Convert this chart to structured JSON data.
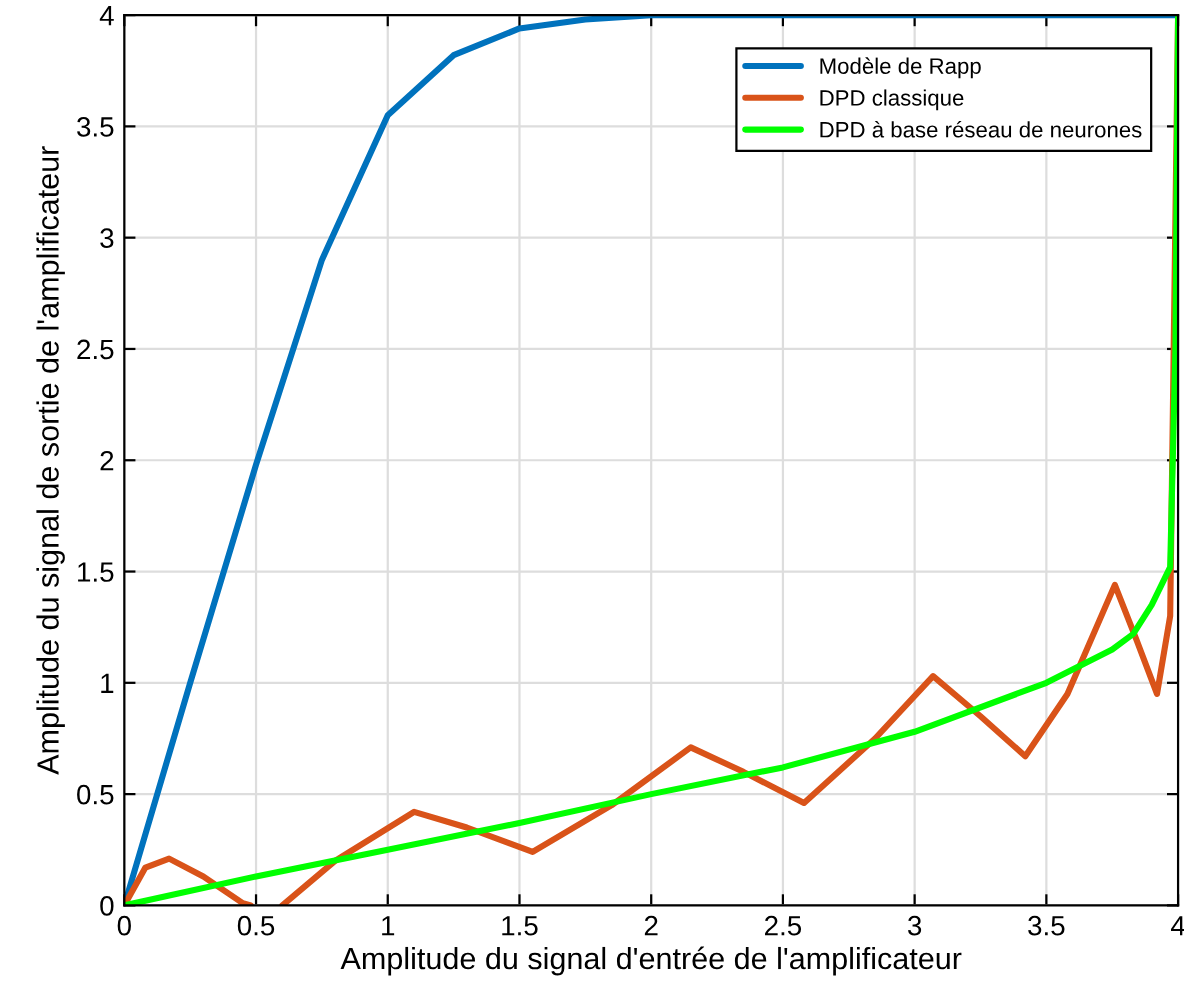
{
  "chart_data": {
    "type": "line",
    "xlabel": "Amplitude du signal d'entrée de l'amplificateur",
    "ylabel": "Amplitude du signal de sortie de l'amplificateur",
    "xlim": [
      0,
      4
    ],
    "ylim": [
      0,
      4
    ],
    "xticks": [
      0,
      0.5,
      1,
      1.5,
      2,
      2.5,
      3,
      3.5,
      4
    ],
    "yticks": [
      0,
      0.5,
      1,
      1.5,
      2,
      2.5,
      3,
      3.5,
      4
    ],
    "grid": true,
    "legend": "top right",
    "series": [
      {
        "name": "Modèle de Rapp",
        "color": "#0072bd",
        "x": [
          0,
          0.25,
          0.5,
          0.75,
          1.0,
          1.25,
          1.5,
          1.75,
          2.0,
          2.5,
          3.0,
          3.5,
          4.0
        ],
        "values": [
          0,
          1.0,
          1.98,
          2.9,
          3.55,
          3.82,
          3.94,
          3.98,
          4.0,
          4.0,
          4.0,
          4.0,
          4.0
        ]
      },
      {
        "name": "DPD classique",
        "color": "#d95319",
        "x": [
          0,
          0.08,
          0.17,
          0.3,
          0.45,
          0.48,
          0.53,
          0.6,
          0.8,
          1.1,
          1.3,
          1.55,
          1.85,
          2.15,
          2.35,
          2.58,
          2.85,
          3.07,
          3.25,
          3.42,
          3.58,
          3.76,
          3.84,
          3.92,
          3.97,
          4.0
        ],
        "values": [
          0,
          0.17,
          0.21,
          0.13,
          0.01,
          0,
          null,
          0,
          0.2,
          0.42,
          0.35,
          0.24,
          0.45,
          0.71,
          0.6,
          0.46,
          0.75,
          1.03,
          0.85,
          0.67,
          0.95,
          1.44,
          1.2,
          0.95,
          1.3,
          4.0
        ]
      },
      {
        "name": "DPD à base réseau de neurones",
        "color": "#00ff00",
        "x": [
          0,
          0.5,
          1,
          1.5,
          2,
          2.5,
          3,
          3.5,
          3.75,
          3.83,
          3.9,
          3.97,
          3.99,
          4.0
        ],
        "values": [
          0,
          0.13,
          0.25,
          0.37,
          0.5,
          0.62,
          0.78,
          1.0,
          1.15,
          1.22,
          1.35,
          1.52,
          2.5,
          4.0
        ]
      }
    ]
  }
}
